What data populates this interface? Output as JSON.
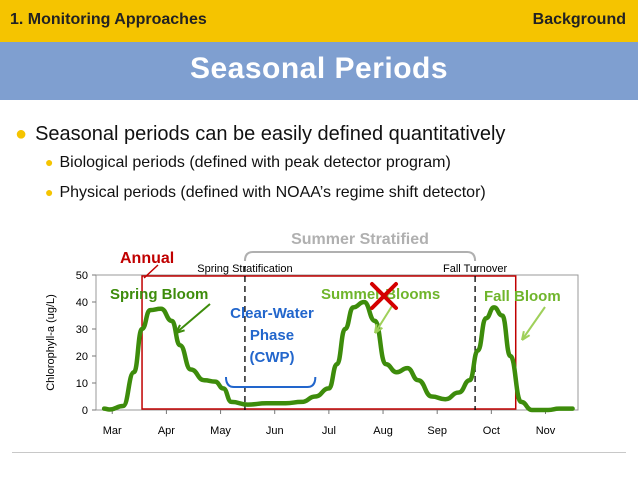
{
  "header": {
    "section": "1. Monitoring Approaches",
    "tag": "Background"
  },
  "title": "Seasonal Periods",
  "bullets": {
    "main": "Seasonal periods can be easily defined quantitatively",
    "sub": [
      "Biological periods (defined with peak detector program)",
      "Physical periods (defined with NOAA’s regime shift detector)"
    ]
  },
  "colors": {
    "accent_yellow": "#f5c400",
    "title_blue": "#7f9fd0",
    "line_green": "#3d8c0b",
    "annual_red": "#c00000",
    "cwp_blue": "#2266cc",
    "summer_gray": "#b0b0b0"
  },
  "chart_data": {
    "type": "line",
    "ylabel": "Chlorophyll-a (ug/L)",
    "xlabel": "",
    "x_labels": [
      "Mar",
      "Apr",
      "May",
      "Jun",
      "Jul",
      "Aug",
      "Sep",
      "Oct",
      "Nov"
    ],
    "y_ticks": [
      0,
      10,
      20,
      30,
      40,
      50
    ],
    "ylim": [
      0,
      50
    ],
    "xlim": [
      -0.3,
      8.6
    ],
    "series": [
      {
        "x": [
          -0.15,
          -0.05,
          0.2,
          0.4,
          0.55,
          0.7,
          0.9,
          1.1,
          1.25,
          1.45,
          1.7,
          1.9,
          2.05,
          2.2,
          2.5,
          2.85,
          3.2,
          3.5,
          3.75,
          4.0,
          4.15,
          4.3,
          4.45,
          4.65,
          4.85,
          5.05,
          5.25,
          5.45,
          5.65,
          5.9,
          6.15,
          6.4,
          6.6,
          6.75,
          6.9,
          7.05,
          7.2,
          7.35,
          7.55,
          7.75,
          8.05,
          8.25,
          8.5
        ],
        "y": [
          0.5,
          0.2,
          1.5,
          14,
          30,
          37,
          37.5,
          33,
          24,
          15,
          11,
          10.5,
          8,
          3,
          2,
          2.5,
          2.5,
          3,
          5,
          8,
          17,
          30,
          38,
          40,
          33,
          17,
          14,
          15.5,
          11,
          5,
          4,
          6.5,
          11,
          22,
          34,
          38,
          35,
          20,
          3,
          0,
          0,
          0.5,
          0.5
        ]
      }
    ],
    "annotations": {
      "annual": "Annual",
      "summer_stratified": "Summer Stratified",
      "spring_stratification": "Spring Stratification",
      "fall_turnover": "Fall Turnover",
      "spring_bloom": "Spring Bloom",
      "summer_blooms": "Summer Blooms",
      "fall_bloom": "Fall Bloom",
      "cwp_line1": "Clear-Water",
      "cwp_line2": "Phase",
      "cwp_line3": "(CWP)",
      "annual_range_months": [
        0.55,
        7.45
      ],
      "summer_range_months": [
        2.45,
        6.7
      ],
      "cwp_range_months": [
        2.1,
        3.75
      ]
    }
  }
}
